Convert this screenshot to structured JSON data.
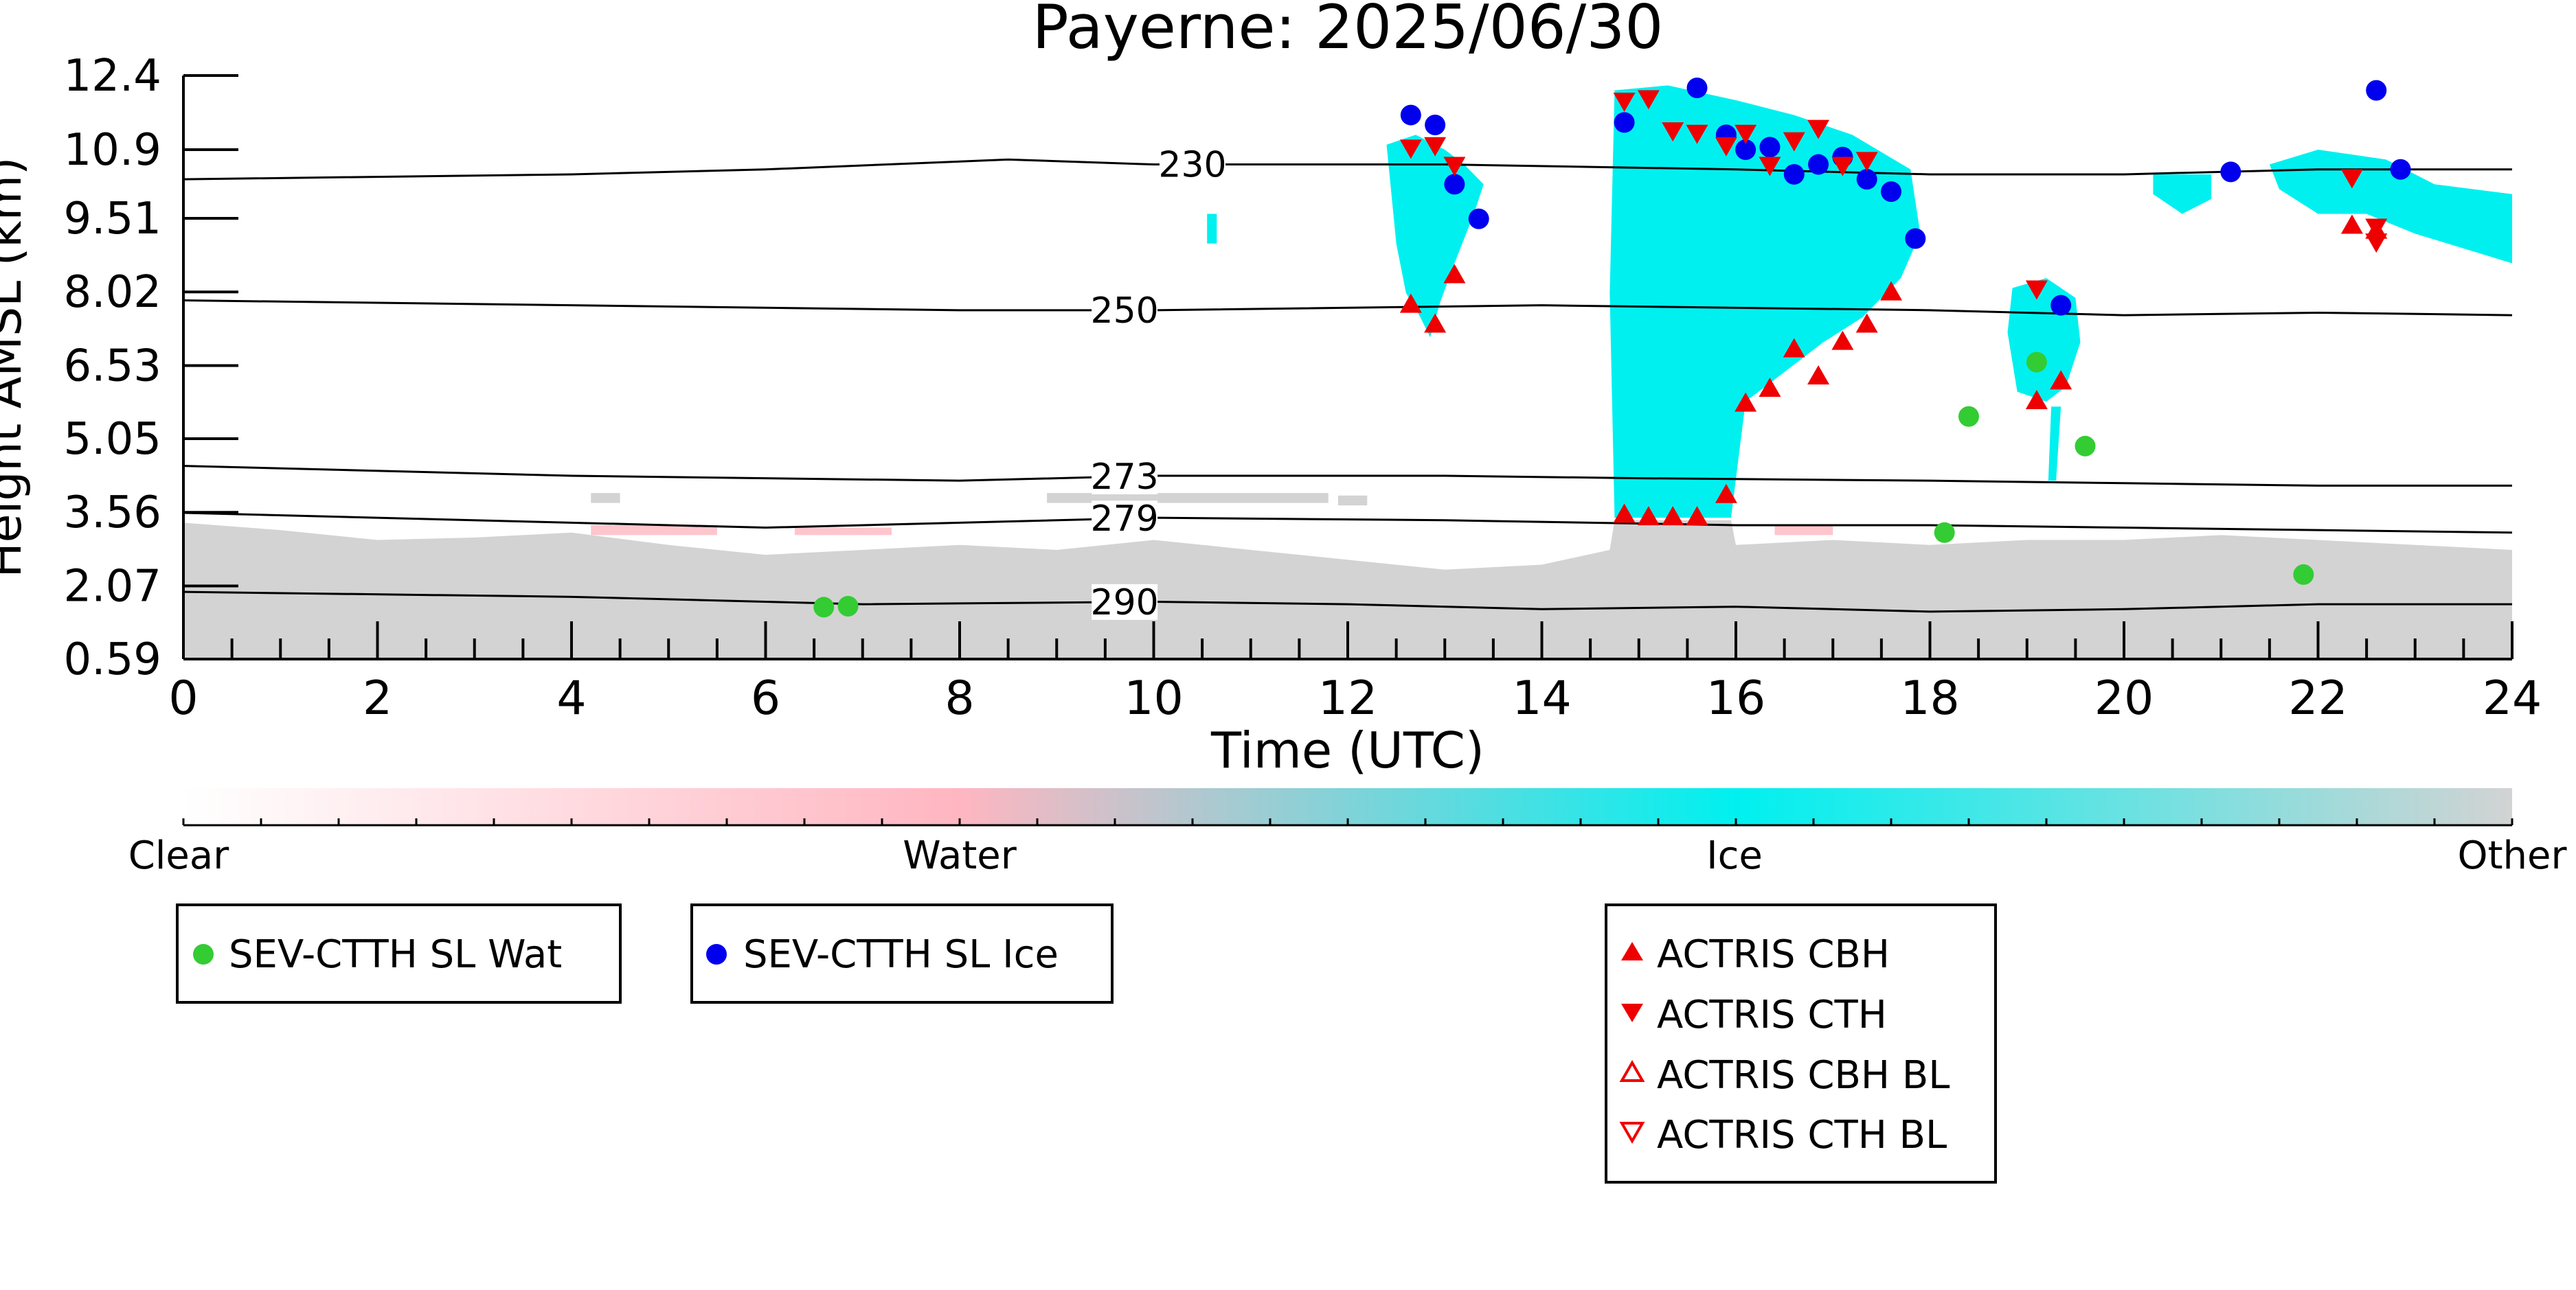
{
  "chart_data": {
    "type": "scatter",
    "title": "Payerne: 2025/06/30",
    "xlabel": "Time (UTC)",
    "ylabel": "Height AMSL (km)",
    "xlim": [
      0,
      24
    ],
    "ylim": [
      0.59,
      12.4
    ],
    "x_ticks": [
      0,
      2,
      4,
      6,
      8,
      10,
      12,
      14,
      16,
      18,
      20,
      22,
      24
    ],
    "y_tick_labels": [
      "0.59",
      "2.07",
      "3.56",
      "5.05",
      "6.53",
      "8.02",
      "9.51",
      "10.9",
      "12.4"
    ],
    "y_tick_values": [
      0.59,
      2.07,
      3.56,
      5.05,
      6.53,
      8.02,
      9.51,
      10.9,
      12.4
    ],
    "grid": false,
    "colors": {
      "clear": "#ffffff",
      "water": "#ffb6c1",
      "ice": "#00f0f0",
      "other": "#d3d3d3",
      "sev_water": "#33cc33",
      "sev_ice": "#0000ee",
      "actris": "#ee0000"
    },
    "colorbar": {
      "labels": [
        "Clear",
        "Water",
        "Ice",
        "Other"
      ]
    },
    "temperature_contours": [
      {
        "label": "230",
        "label_x": 10.4,
        "points": [
          [
            0,
            10.3
          ],
          [
            4,
            10.4
          ],
          [
            6,
            10.5
          ],
          [
            8.5,
            10.7
          ],
          [
            10,
            10.6
          ],
          [
            13,
            10.6
          ],
          [
            16,
            10.5
          ],
          [
            18,
            10.4
          ],
          [
            20,
            10.4
          ],
          [
            22,
            10.5
          ],
          [
            24,
            10.5
          ]
        ]
      },
      {
        "label": "250",
        "label_x": 9.7,
        "points": [
          [
            0,
            7.85
          ],
          [
            4,
            7.75
          ],
          [
            8,
            7.65
          ],
          [
            10,
            7.65
          ],
          [
            14,
            7.75
          ],
          [
            18,
            7.65
          ],
          [
            20,
            7.55
          ],
          [
            22,
            7.6
          ],
          [
            24,
            7.55
          ]
        ]
      },
      {
        "label": "273",
        "label_x": 9.7,
        "points": [
          [
            0,
            4.5
          ],
          [
            4,
            4.3
          ],
          [
            8,
            4.2
          ],
          [
            10,
            4.3
          ],
          [
            13,
            4.3
          ],
          [
            15,
            4.25
          ],
          [
            18,
            4.2
          ],
          [
            20,
            4.15
          ],
          [
            22,
            4.1
          ],
          [
            24,
            4.1
          ]
        ]
      },
      {
        "label": "279",
        "label_x": 9.7,
        "points": [
          [
            0,
            3.55
          ],
          [
            4,
            3.35
          ],
          [
            6,
            3.25
          ],
          [
            8,
            3.35
          ],
          [
            10,
            3.45
          ],
          [
            13,
            3.4
          ],
          [
            16,
            3.3
          ],
          [
            18,
            3.3
          ],
          [
            20,
            3.25
          ],
          [
            22,
            3.2
          ],
          [
            24,
            3.15
          ]
        ]
      },
      {
        "label": "290",
        "label_x": 9.7,
        "points": [
          [
            0,
            1.95
          ],
          [
            4,
            1.85
          ],
          [
            7,
            1.7
          ],
          [
            10,
            1.75
          ],
          [
            12,
            1.7
          ],
          [
            14,
            1.6
          ],
          [
            16,
            1.65
          ],
          [
            18,
            1.55
          ],
          [
            20,
            1.6
          ],
          [
            22,
            1.7
          ],
          [
            24,
            1.7
          ]
        ]
      }
    ],
    "sev_ctth_sl_wat": [
      {
        "x": 6.6,
        "y": 1.64
      },
      {
        "x": 6.85,
        "y": 1.66
      },
      {
        "x": 18.15,
        "y": 3.15
      },
      {
        "x": 18.4,
        "y": 5.5
      },
      {
        "x": 19.1,
        "y": 6.6
      },
      {
        "x": 19.6,
        "y": 4.9
      },
      {
        "x": 21.85,
        "y": 2.3
      }
    ],
    "sev_ctth_sl_ice": [
      {
        "x": 12.65,
        "y": 11.6
      },
      {
        "x": 12.9,
        "y": 11.4
      },
      {
        "x": 13.1,
        "y": 10.2
      },
      {
        "x": 13.35,
        "y": 9.5
      },
      {
        "x": 14.85,
        "y": 11.45
      },
      {
        "x": 15.6,
        "y": 12.15
      },
      {
        "x": 15.9,
        "y": 11.2
      },
      {
        "x": 16.1,
        "y": 10.9
      },
      {
        "x": 16.35,
        "y": 10.95
      },
      {
        "x": 16.6,
        "y": 10.4
      },
      {
        "x": 16.85,
        "y": 10.6
      },
      {
        "x": 17.1,
        "y": 10.75
      },
      {
        "x": 17.35,
        "y": 10.3
      },
      {
        "x": 17.6,
        "y": 10.05
      },
      {
        "x": 17.85,
        "y": 9.1
      },
      {
        "x": 19.35,
        "y": 7.75
      },
      {
        "x": 21.1,
        "y": 10.45
      },
      {
        "x": 22.6,
        "y": 12.1
      },
      {
        "x": 22.85,
        "y": 10.5
      }
    ],
    "actris_cbh": [
      {
        "x": 12.65,
        "y": 7.75
      },
      {
        "x": 12.9,
        "y": 7.35
      },
      {
        "x": 13.1,
        "y": 8.35
      },
      {
        "x": 14.85,
        "y": 3.5
      },
      {
        "x": 15.1,
        "y": 3.45
      },
      {
        "x": 15.35,
        "y": 3.45
      },
      {
        "x": 15.6,
        "y": 3.45
      },
      {
        "x": 15.9,
        "y": 3.9
      },
      {
        "x": 16.1,
        "y": 5.75
      },
      {
        "x": 16.35,
        "y": 6.05
      },
      {
        "x": 16.6,
        "y": 6.85
      },
      {
        "x": 16.85,
        "y": 6.3
      },
      {
        "x": 17.1,
        "y": 7.0
      },
      {
        "x": 17.35,
        "y": 7.35
      },
      {
        "x": 17.6,
        "y": 8.0
      },
      {
        "x": 19.1,
        "y": 5.8
      },
      {
        "x": 19.35,
        "y": 6.2
      },
      {
        "x": 22.35,
        "y": 9.35
      },
      {
        "x": 22.6,
        "y": 9.25
      }
    ],
    "actris_cth": [
      {
        "x": 12.65,
        "y": 10.95
      },
      {
        "x": 12.9,
        "y": 11.0
      },
      {
        "x": 13.1,
        "y": 10.6
      },
      {
        "x": 14.85,
        "y": 11.9
      },
      {
        "x": 15.1,
        "y": 11.95
      },
      {
        "x": 15.35,
        "y": 11.3
      },
      {
        "x": 15.6,
        "y": 11.25
      },
      {
        "x": 15.9,
        "y": 11.0
      },
      {
        "x": 16.1,
        "y": 11.25
      },
      {
        "x": 16.35,
        "y": 10.6
      },
      {
        "x": 16.6,
        "y": 11.1
      },
      {
        "x": 16.85,
        "y": 11.35
      },
      {
        "x": 17.1,
        "y": 10.6
      },
      {
        "x": 17.35,
        "y": 10.7
      },
      {
        "x": 19.1,
        "y": 8.1
      },
      {
        "x": 22.35,
        "y": 10.35
      },
      {
        "x": 22.6,
        "y": 9.35
      },
      {
        "x": 22.6,
        "y": 9.05
      }
    ],
    "legends": {
      "sev": [
        {
          "label": "SEV-CTTH SL Wat",
          "marker": "circle",
          "color_key": "sev_water"
        },
        {
          "label": "SEV-CTTH SL Ice",
          "marker": "circle",
          "color_key": "sev_ice"
        }
      ],
      "actris": [
        {
          "label": "ACTRIS CBH",
          "marker": "triangle-up-filled"
        },
        {
          "label": "ACTRIS CTH",
          "marker": "triangle-down-filled"
        },
        {
          "label": "ACTRIS CBH BL",
          "marker": "triangle-up-open"
        },
        {
          "label": "ACTRIS CTH BL",
          "marker": "triangle-down-open"
        }
      ]
    }
  }
}
